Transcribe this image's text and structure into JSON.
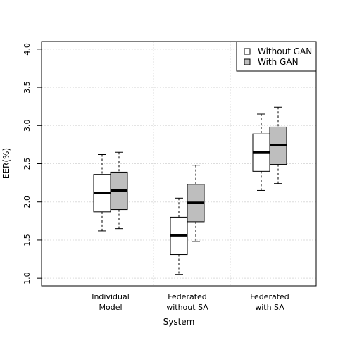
{
  "chart_data": {
    "type": "boxplot",
    "title": "",
    "xlabel": "System",
    "ylabel": "EER(%)",
    "ylim": [
      0.9,
      4.1
    ],
    "yticks": [
      "1.0",
      "1.5",
      "2.0",
      "2.5",
      "3.0",
      "3.5",
      "4.0"
    ],
    "categories": [
      {
        "lines": [
          "Individual",
          "Model"
        ]
      },
      {
        "lines": [
          "Federated",
          "without SA"
        ]
      },
      {
        "lines": [
          "Federated",
          "with SA"
        ]
      }
    ],
    "grid": true,
    "legend_position": "top-right",
    "series": [
      {
        "name": "Without GAN",
        "color": "#ffffff",
        "boxes": [
          {
            "min": 1.62,
            "q1": 1.87,
            "median": 2.12,
            "q3": 2.36,
            "max": 2.62
          },
          {
            "min": 1.05,
            "q1": 1.31,
            "median": 1.56,
            "q3": 1.8,
            "max": 2.05
          },
          {
            "min": 2.15,
            "q1": 2.4,
            "median": 2.65,
            "q3": 2.89,
            "max": 3.15
          }
        ]
      },
      {
        "name": "With GAN",
        "color": "#bebebe",
        "boxes": [
          {
            "min": 1.65,
            "q1": 1.9,
            "median": 2.15,
            "q3": 2.39,
            "max": 2.65
          },
          {
            "min": 1.48,
            "q1": 1.74,
            "median": 1.99,
            "q3": 2.23,
            "max": 2.48
          },
          {
            "min": 2.24,
            "q1": 2.49,
            "median": 2.74,
            "q3": 2.98,
            "max": 3.24
          }
        ]
      }
    ]
  }
}
